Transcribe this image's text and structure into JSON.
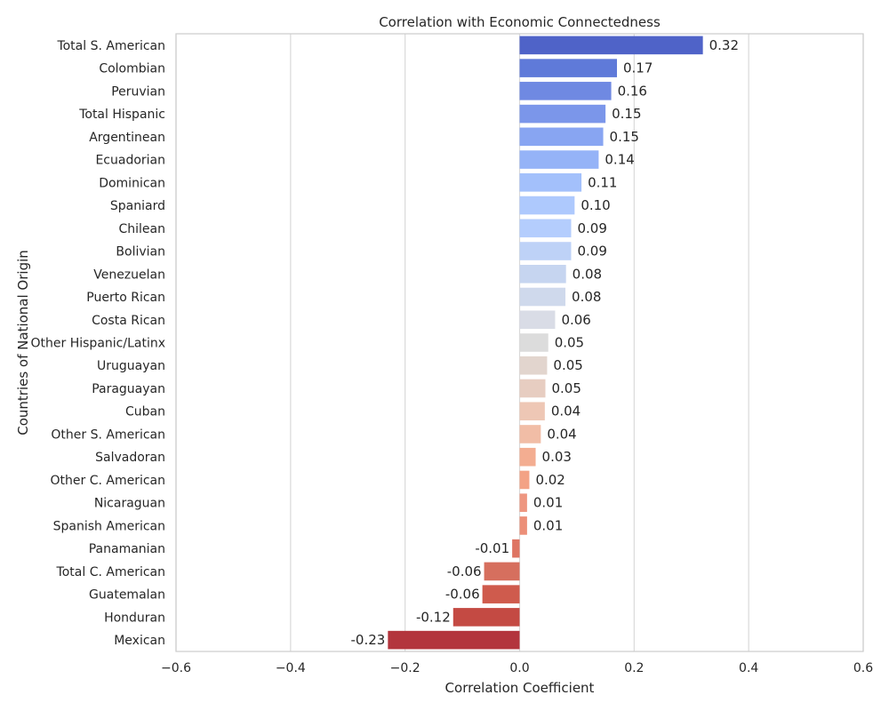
{
  "chart_data": {
    "type": "bar",
    "orientation": "horizontal",
    "title": "Correlation with Economic Connectedness",
    "xlabel": "Correlation Coefficient",
    "ylabel": "Countries of National Origin",
    "xlim": [
      -0.6,
      0.6
    ],
    "xticks": [
      -0.6,
      -0.4,
      -0.2,
      0.0,
      0.2,
      0.4,
      0.6
    ],
    "xtick_labels": [
      "−0.6",
      "−0.4",
      "−0.2",
      "0.0",
      "0.2",
      "0.4",
      "0.6"
    ],
    "grid": "vertical",
    "categories": [
      "Total S. American",
      "Colombian",
      "Peruvian",
      "Total Hispanic",
      "Argentinean",
      "Ecuadorian",
      "Dominican",
      "Spaniard",
      "Chilean",
      "Bolivian",
      "Venezuelan",
      "Puerto Rican",
      "Costa Rican",
      "Other Hispanic/Latinx",
      "Uruguayan",
      "Paraguayan",
      "Cuban",
      "Other S. American",
      "Salvadoran",
      "Other C. American",
      "Nicaraguan",
      "Spanish American",
      "Panamanian",
      "Total C. American",
      "Guatemalan",
      "Honduran",
      "Mexican"
    ],
    "values": [
      0.32,
      0.17,
      0.16,
      0.15,
      0.146,
      0.138,
      0.108,
      0.096,
      0.09,
      0.09,
      0.081,
      0.08,
      0.062,
      0.05,
      0.048,
      0.045,
      0.044,
      0.037,
      0.028,
      0.017,
      0.013,
      0.013,
      -0.013,
      -0.062,
      -0.065,
      -0.116,
      -0.23
    ],
    "value_labels": [
      "0.32",
      "0.17",
      "0.16",
      "0.15",
      "0.15",
      "0.14",
      "0.11",
      "0.10",
      "0.09",
      "0.09",
      "0.08",
      "0.08",
      "0.06",
      "0.05",
      "0.05",
      "0.05",
      "0.04",
      "0.04",
      "0.03",
      "0.02",
      "0.01",
      "0.01",
      "-0.01",
      "-0.06",
      "-0.06",
      "-0.12",
      "-0.23"
    ],
    "colors": [
      "#4f63c8",
      "#5f7ad9",
      "#6f89e2",
      "#7b96ea",
      "#88a5f2",
      "#95b3f7",
      "#a3c0fb",
      "#aec9fd",
      "#b4cdfd",
      "#bed2f7",
      "#c6d5f0",
      "#cfd9ec",
      "#d9dce6",
      "#dcdcdc",
      "#e2d5ce",
      "#e7cdc1",
      "#eec7b5",
      "#f1bda6",
      "#f3ad91",
      "#f3a285",
      "#ee9680",
      "#ec8f78",
      "#de7563",
      "#d66f5e",
      "#cf5b4d",
      "#c44a43",
      "#b3353d"
    ]
  }
}
